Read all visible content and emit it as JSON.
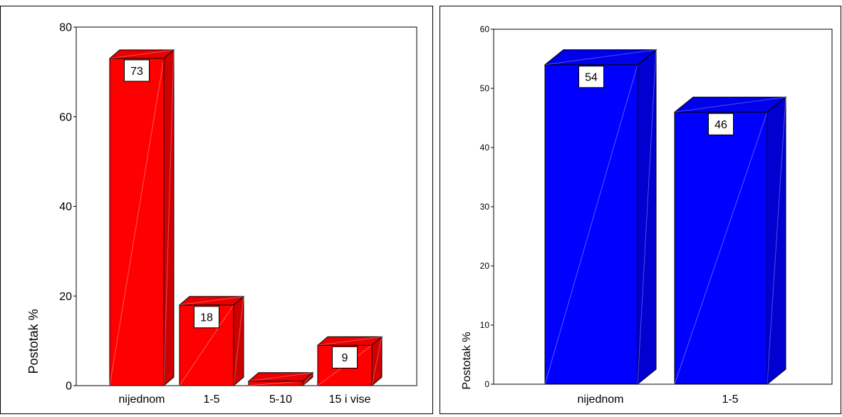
{
  "chart_data": [
    {
      "type": "bar",
      "categories": [
        "nijednom",
        "1-5",
        "5-10",
        "15 i vise"
      ],
      "values": [
        73,
        18,
        1,
        9
      ],
      "data_labels": [
        "73",
        "18",
        "",
        "9"
      ],
      "ylabel": "Postotak %",
      "ylim": [
        0,
        80
      ],
      "yticks": [
        "0",
        "20",
        "40",
        "60",
        "80"
      ],
      "ytick_values": [
        0,
        20,
        40,
        60,
        80
      ],
      "color": "#ff0000",
      "grid": false,
      "style": "3d"
    },
    {
      "type": "bar",
      "categories": [
        "nijednom",
        "1-5"
      ],
      "values": [
        54,
        46
      ],
      "data_labels": [
        "54",
        "46"
      ],
      "ylabel": "Postotak %",
      "ylim": [
        0,
        60
      ],
      "yticks": [
        "0",
        "10",
        "20",
        "30",
        "40",
        "50",
        "60"
      ],
      "ytick_values": [
        0,
        10,
        20,
        30,
        40,
        50,
        60
      ],
      "color": "#0000ff",
      "grid": false,
      "style": "3d"
    }
  ]
}
